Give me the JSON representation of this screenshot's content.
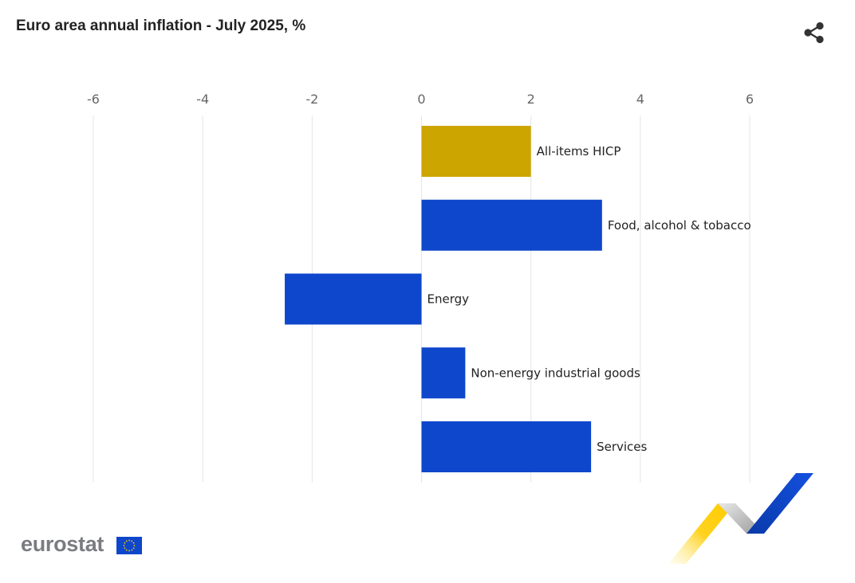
{
  "header": {
    "title": "Euro area annual inflation - July 2025, %"
  },
  "toolbar": {
    "share_icon": "share-icon"
  },
  "chart_data": {
    "type": "bar",
    "orientation": "horizontal",
    "title": "Euro area annual inflation - July 2025, %",
    "xlabel": "",
    "ylabel": "",
    "xlim": [
      -6,
      6
    ],
    "ticks": [
      -6,
      -4,
      -2,
      0,
      2,
      4,
      6
    ],
    "tick_labels": [
      "-6",
      "-4",
      "-2",
      "0",
      "2",
      "4",
      "6"
    ],
    "grid": true,
    "categories": [
      "All-items HICP",
      "Food, alcohol & tobacco",
      "Energy",
      "Non-energy industrial goods",
      "Services"
    ],
    "values": [
      2.0,
      3.3,
      -2.5,
      0.8,
      3.1
    ],
    "colors": [
      "#cca500",
      "#0e47cb",
      "#0e47cb",
      "#0e47cb",
      "#0e47cb"
    ]
  },
  "footer": {
    "logo_text": "eurostat",
    "flag_icon": "eu-flag-icon",
    "deco_icon": "ribbon-decoration-icon"
  },
  "colors": {
    "highlight": "#cca500",
    "bar": "#0e47cb",
    "grid": "#e6e6e6"
  }
}
